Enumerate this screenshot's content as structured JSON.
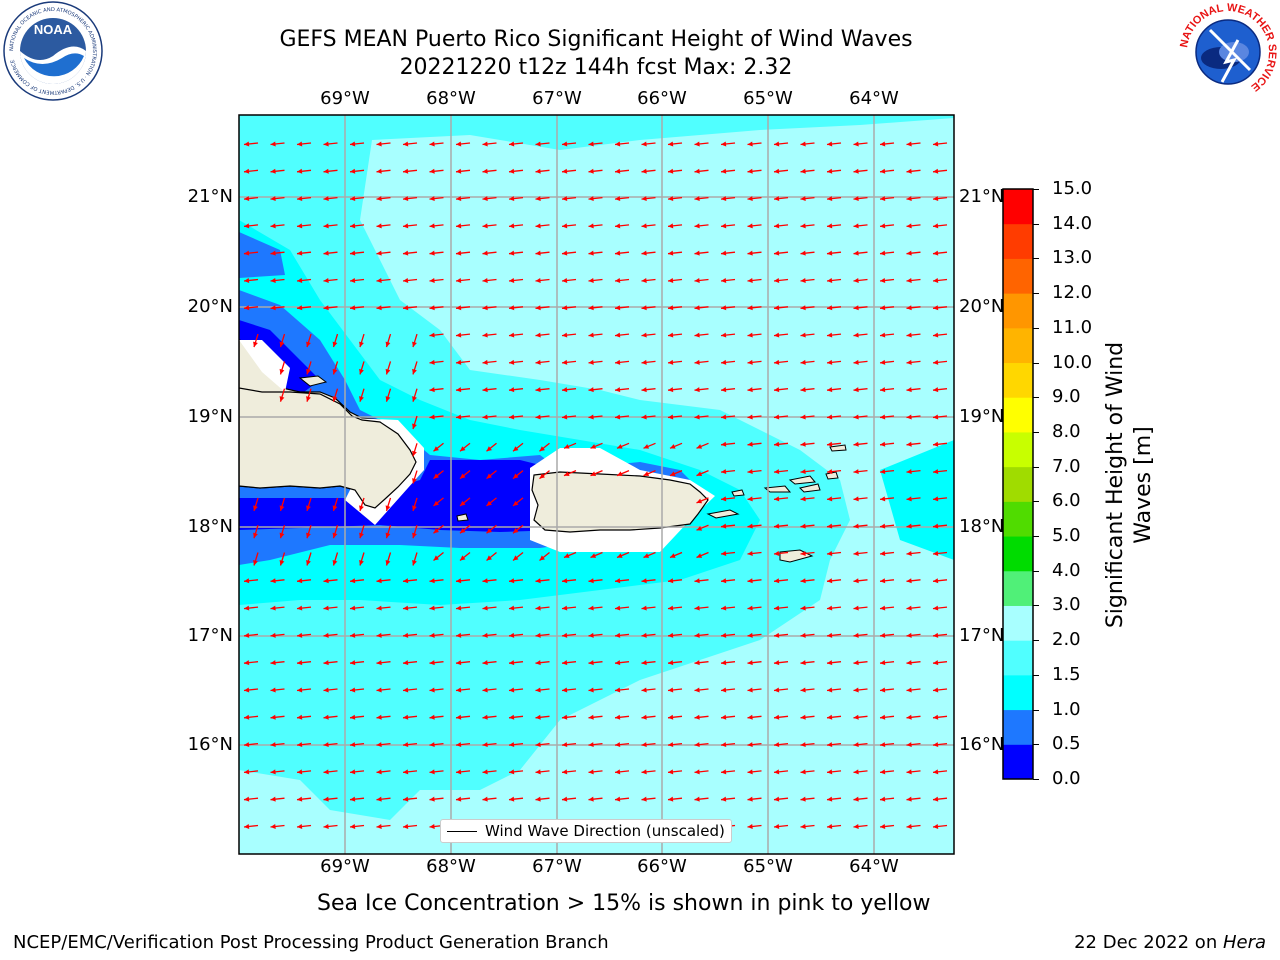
{
  "title": {
    "line1": "GEFS MEAN Puerto Rico Significant Height of Wind Waves",
    "line2": "20221220 t12z 144h fcst   Max: 2.32"
  },
  "logos": {
    "left": "NOAA",
    "left_ring": "NATIONAL OCEANIC AND ATMOSPHERIC ADMINISTRATION · U.S. DEPARTMENT OF COMMERCE",
    "right_ring": "NATIONAL WEATHER SERVICE"
  },
  "map": {
    "lon_ticks": [
      "69°W",
      "68°W",
      "67°W",
      "66°W",
      "65°W",
      "64°W"
    ],
    "lat_ticks": [
      "21°N",
      "20°N",
      "19°N",
      "18°N",
      "17°N",
      "16°N"
    ],
    "legend_label": "Wind Wave Direction (unscaled)",
    "arrow_color": "#ff0000",
    "coast_color": "#000000",
    "land_color": "#efeddc"
  },
  "colorbar": {
    "title": "Significant Height of Wind Waves [m]",
    "labels": [
      "15.0",
      "14.0",
      "13.0",
      "12.0",
      "11.0",
      "10.0",
      "9.0",
      "8.0",
      "7.0",
      "6.0",
      "5.0",
      "4.0",
      "3.0",
      "2.0",
      "1.5",
      "1.0",
      "0.5",
      "0.0"
    ],
    "colors_bottom_to_top": [
      "#0000ff",
      "#1e78ff",
      "#00ffff",
      "#50ffff",
      "#a8ffff",
      "#50f078",
      "#00dc00",
      "#50dc00",
      "#a0dc00",
      "#c8ff00",
      "#ffff00",
      "#ffd700",
      "#ffb400",
      "#ff9600",
      "#ff6400",
      "#ff3c00",
      "#ff0000"
    ]
  },
  "note": "Sea Ice Concentration > 15% is shown in pink to yellow",
  "footer": {
    "left": "NCEP/EMC/Verification Post Processing Product Generation Branch",
    "right_date": "22 Dec 2022 on ",
    "right_host": "Hera"
  }
}
